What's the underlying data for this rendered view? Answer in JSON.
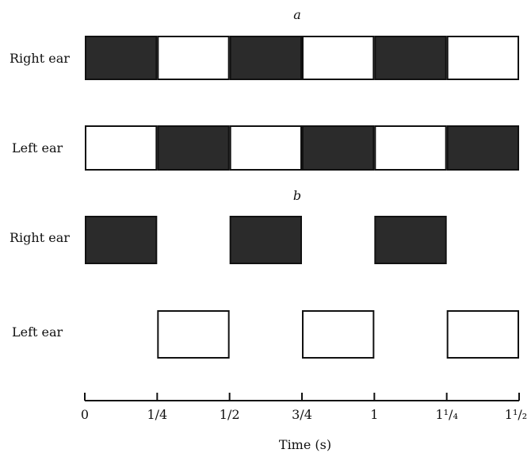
{
  "figure": {
    "panel_a_label": "a",
    "panel_b_label": "b",
    "colors": {
      "tone_on": "#2b2b2b",
      "tone_off": "#ffffff",
      "stroke": "#111111"
    }
  },
  "panels": [
    {
      "id": "a",
      "rows": [
        {
          "label": "Right ear",
          "blocks": [
            {
              "t0": 0,
              "t1": 0.25,
              "fill": "dark"
            },
            {
              "t0": 0.25,
              "t1": 0.5,
              "fill": "light"
            },
            {
              "t0": 0.5,
              "t1": 0.75,
              "fill": "dark"
            },
            {
              "t0": 0.75,
              "t1": 1.0,
              "fill": "light"
            },
            {
              "t0": 1.0,
              "t1": 1.25,
              "fill": "dark"
            },
            {
              "t0": 1.25,
              "t1": 1.5,
              "fill": "light"
            }
          ]
        },
        {
          "label": "Left ear",
          "blocks": [
            {
              "t0": 0,
              "t1": 0.25,
              "fill": "light"
            },
            {
              "t0": 0.25,
              "t1": 0.5,
              "fill": "dark"
            },
            {
              "t0": 0.5,
              "t1": 0.75,
              "fill": "light"
            },
            {
              "t0": 0.75,
              "t1": 1.0,
              "fill": "dark"
            },
            {
              "t0": 1.0,
              "t1": 1.25,
              "fill": "light"
            },
            {
              "t0": 1.25,
              "t1": 1.5,
              "fill": "dark"
            }
          ]
        }
      ]
    },
    {
      "id": "b",
      "rows": [
        {
          "label": "Right ear",
          "blocks": [
            {
              "t0": 0,
              "t1": 0.25,
              "fill": "dark"
            },
            {
              "t0": 0.5,
              "t1": 0.75,
              "fill": "dark"
            },
            {
              "t0": 1.0,
              "t1": 1.25,
              "fill": "dark"
            }
          ]
        },
        {
          "label": "Left ear",
          "blocks": [
            {
              "t0": 0.25,
              "t1": 0.5,
              "fill": "light"
            },
            {
              "t0": 0.75,
              "t1": 1.0,
              "fill": "light"
            },
            {
              "t0": 1.25,
              "t1": 1.5,
              "fill": "light"
            }
          ]
        }
      ]
    }
  ],
  "axis": {
    "label": "Time (s)",
    "ticks": [
      {
        "t": 0,
        "label": "0"
      },
      {
        "t": 0.25,
        "label": "1/4"
      },
      {
        "t": 0.5,
        "label": "1/2"
      },
      {
        "t": 0.75,
        "label": "3/4"
      },
      {
        "t": 1.0,
        "label": "1"
      },
      {
        "t": 1.25,
        "label": "1¹/₄"
      },
      {
        "t": 1.5,
        "label": "1¹/₂"
      }
    ]
  }
}
